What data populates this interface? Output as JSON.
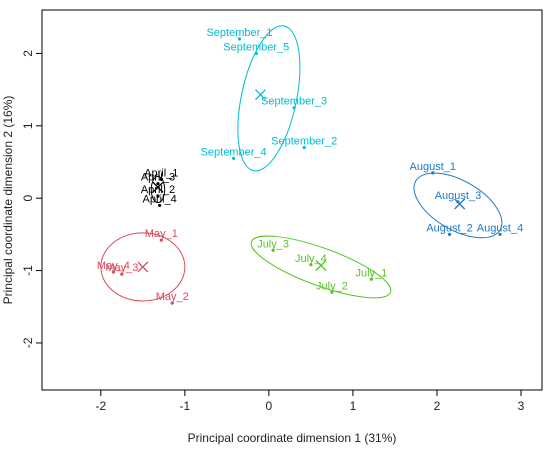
{
  "chart_data": {
    "type": "scatter",
    "xlabel": "Principal coordinate dimension 1 (31%)",
    "ylabel": "Principal coordinate dimension 2 (16%)",
    "xlim": [
      -2.7,
      3.25
    ],
    "ylim": [
      -2.65,
      2.6
    ],
    "x_ticks": [
      "-2",
      "-1",
      "0",
      "1",
      "2",
      "3"
    ],
    "y_ticks": [
      "-2",
      "-1",
      "0",
      "1",
      "2"
    ],
    "grid": false,
    "series": [
      {
        "color": "#000000",
        "points": [
          {
            "label": "April_1",
            "x": -1.28,
            "y": 0.26
          },
          {
            "label": "April_3",
            "x": -1.32,
            "y": 0.2
          },
          {
            "label": "April_2",
            "x": -1.32,
            "y": 0.03
          },
          {
            "label": "April_4",
            "x": -1.3,
            "y": -0.1
          }
        ],
        "centroid": {
          "x": -1.32,
          "y": 0.15
        },
        "ellipse": {
          "cx": -1.32,
          "cy": 0.12,
          "rx": 0.08,
          "ry": 0.18,
          "angle": 0
        }
      },
      {
        "color": "#00bcd4",
        "points": [
          {
            "label": "September_1",
            "x": -0.35,
            "y": 2.2
          },
          {
            "label": "September_5",
            "x": -0.15,
            "y": 2.0
          },
          {
            "label": "September_3",
            "x": 0.3,
            "y": 1.25
          },
          {
            "label": "September_2",
            "x": 0.42,
            "y": 0.7
          },
          {
            "label": "September_4",
            "x": -0.42,
            "y": 0.55
          }
        ],
        "centroid": {
          "x": -0.1,
          "y": 1.43
        },
        "ellipse": {
          "cx": 0.0,
          "cy": 1.38,
          "rx": 0.88,
          "ry": 0.38,
          "angle": 78
        }
      },
      {
        "color": "#1e78c8",
        "points": [
          {
            "label": "August_1",
            "x": 1.95,
            "y": 0.35
          },
          {
            "label": "August_3",
            "x": 2.25,
            "y": -0.05
          },
          {
            "label": "August_2",
            "x": 2.15,
            "y": -0.5
          },
          {
            "label": "August_4",
            "x": 2.75,
            "y": -0.5
          }
        ],
        "centroid": {
          "x": 2.27,
          "y": -0.08
        },
        "ellipse": {
          "cx": 2.25,
          "cy": -0.1,
          "rx": 0.58,
          "ry": 0.34,
          "angle": -30
        }
      },
      {
        "color": "#58c425",
        "points": [
          {
            "label": "July_3",
            "x": 0.05,
            "y": -0.72
          },
          {
            "label": "July_4",
            "x": 0.5,
            "y": -0.92
          },
          {
            "label": "July_1",
            "x": 1.22,
            "y": -1.12
          },
          {
            "label": "July_2",
            "x": 0.75,
            "y": -1.3
          }
        ],
        "centroid": {
          "x": 0.62,
          "y": -0.93
        },
        "ellipse": {
          "cx": 0.62,
          "cy": -0.95,
          "rx": 0.88,
          "ry": 0.26,
          "angle": -20
        }
      },
      {
        "color": "#d94a5a",
        "points": [
          {
            "label": "May_1",
            "x": -1.28,
            "y": -0.58
          },
          {
            "label": "May_3",
            "x": -1.75,
            "y": -1.05
          },
          {
            "label": "May_4",
            "x": -1.85,
            "y": -1.02
          },
          {
            "label": "May_2",
            "x": -1.15,
            "y": -1.45
          }
        ],
        "centroid": {
          "x": -1.5,
          "y": -0.95
        },
        "ellipse": {
          "cx": -1.5,
          "cy": -0.95,
          "rx": 0.5,
          "ry": 0.47,
          "angle": 0
        }
      }
    ]
  }
}
